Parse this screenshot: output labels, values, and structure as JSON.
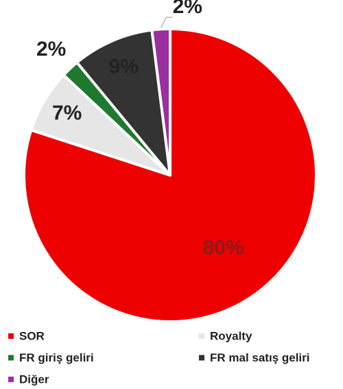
{
  "chart_data": {
    "type": "pie",
    "categories": [
      "SOR",
      "Royalty",
      "FR giriş geliri",
      "FR mal satış geliri",
      "Diğer"
    ],
    "values": [
      80,
      7,
      2,
      9,
      2
    ],
    "value_labels": [
      "80%",
      "7%",
      "2%",
      "9%",
      "2%"
    ],
    "colors": [
      "#ee0000",
      "#e6e6e6",
      "#1e7a2e",
      "#333333",
      "#9b2fa0"
    ],
    "legend": "bottom"
  }
}
